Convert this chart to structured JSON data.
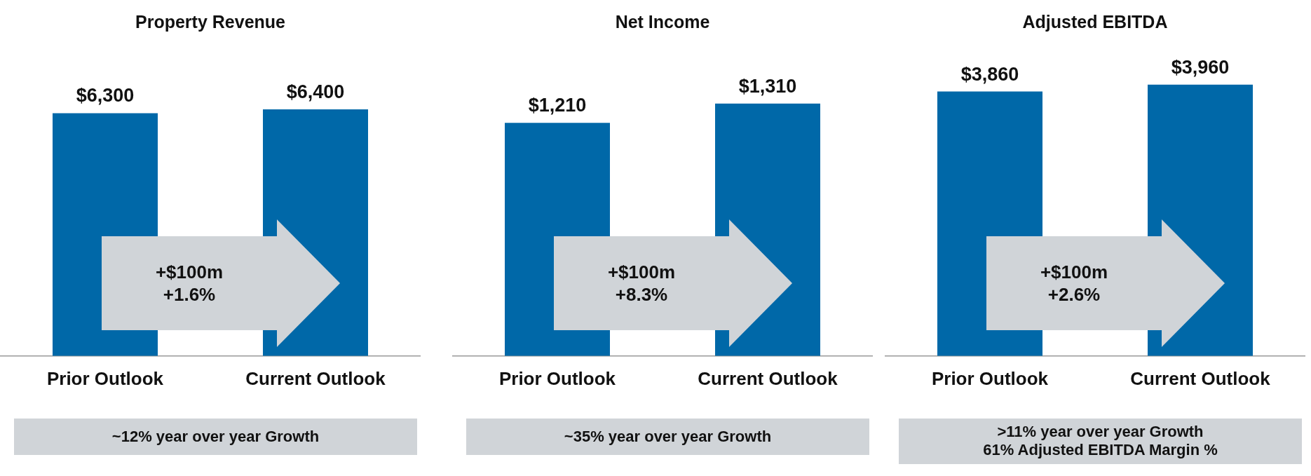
{
  "chart_data": [
    {
      "type": "bar",
      "title": "Property Revenue",
      "categories": [
        "Prior Outlook",
        "Current Outlook"
      ],
      "values": [
        6300,
        6400
      ],
      "color": "#0068a8",
      "value_labels": [
        "$6,300",
        "$6,400"
      ],
      "tick_labels": "x",
      "grid": false,
      "legend": false,
      "annotations": [
        "+$100m\n+1.6%",
        "~12% year over year Growth"
      ]
    },
    {
      "type": "bar",
      "title": "Net Income",
      "categories": [
        "Prior Outlook",
        "Current Outlook"
      ],
      "values": [
        1210,
        1310
      ],
      "color": "#0068a8",
      "value_labels": [
        "$1,210",
        "$1,310"
      ],
      "tick_labels": "x",
      "grid": false,
      "legend": false,
      "annotations": [
        "+$100m\n+8.3%",
        "~35% year over year Growth"
      ]
    },
    {
      "type": "bar",
      "title": "Adjusted EBITDA",
      "categories": [
        "Prior Outlook",
        "Current Outlook"
      ],
      "values": [
        3860,
        3960
      ],
      "color": "#0068a8",
      "value_labels": [
        "$3,860",
        "$3,960"
      ],
      "tick_labels": "x",
      "grid": false,
      "legend": false,
      "annotations": [
        "+$100m\n+2.6%",
        ">11% year over year Growth\n61% Adjusted EBITDA Margin %"
      ]
    }
  ]
}
